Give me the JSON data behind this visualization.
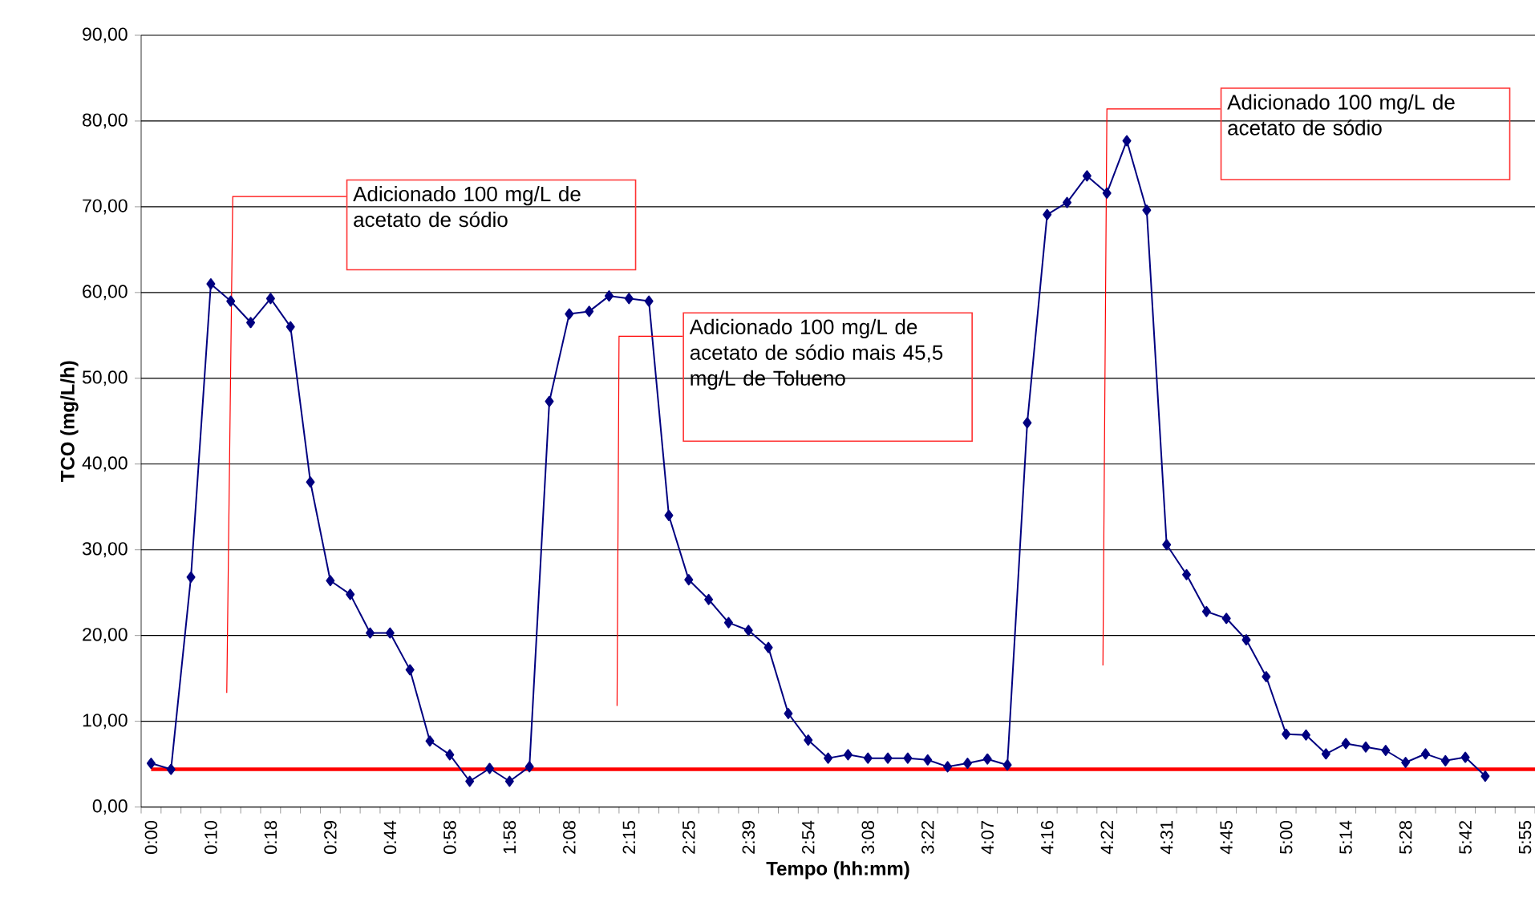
{
  "chart_data": {
    "type": "line",
    "xlabel": "Tempo (hh:mm)",
    "ylabel": "TCO (mg/L/h)",
    "categories": [
      "0:00",
      null,
      null,
      "0:10",
      null,
      null,
      "0:18",
      null,
      null,
      "0:29",
      null,
      null,
      "0:44",
      null,
      null,
      "0:58",
      null,
      null,
      "1:58",
      null,
      null,
      "2:08",
      null,
      null,
      "2:15",
      null,
      null,
      "2:25",
      null,
      null,
      "2:39",
      null,
      null,
      "2:54",
      null,
      null,
      "3:08",
      null,
      null,
      "3:22",
      null,
      null,
      "4:07",
      null,
      null,
      "4:16",
      null,
      null,
      "4:22",
      null,
      null,
      "4:31",
      null,
      null,
      "4:45",
      null,
      null,
      "5:00",
      null,
      null,
      "5:14",
      null,
      null,
      "5:28",
      null,
      null,
      "5:42",
      null,
      null,
      "5:55"
    ],
    "series": [
      {
        "color": "#000080",
        "values": [
          5.1,
          4.4,
          26.8,
          61.0,
          59.0,
          56.5,
          59.3,
          56.0,
          37.9,
          26.4,
          24.8,
          20.3,
          20.3,
          16.0,
          7.7,
          6.1,
          3.0,
          4.5,
          3.0,
          4.7,
          47.3,
          57.5,
          57.8,
          59.6,
          59.3,
          59.0,
          34.0,
          26.5,
          24.2,
          21.5,
          20.6,
          18.6,
          10.9,
          7.8,
          5.7,
          6.1,
          5.7,
          5.7,
          5.7,
          5.5,
          4.7,
          5.1,
          5.6,
          4.9,
          44.8,
          69.1,
          70.5,
          73.6,
          71.6,
          77.7,
          69.6,
          30.6,
          27.1,
          22.8,
          22.0,
          19.5,
          15.2,
          8.5,
          8.4,
          6.2,
          7.4,
          7.0,
          6.6,
          5.2,
          6.2,
          5.4,
          5.8,
          3.6,
          null,
          null
        ]
      }
    ],
    "ylim": [
      0,
      90
    ],
    "yticks": [
      {
        "value": 0,
        "label": "0,00"
      },
      {
        "value": 10,
        "label": "10,00"
      },
      {
        "value": 20,
        "label": "20,00"
      },
      {
        "value": 30,
        "label": "30,00"
      },
      {
        "value": 40,
        "label": "40,00"
      },
      {
        "value": 50,
        "label": "50,00"
      },
      {
        "value": 60,
        "label": "60,00"
      },
      {
        "value": 70,
        "label": "70,00"
      },
      {
        "value": 80,
        "label": "80,00"
      },
      {
        "value": 90,
        "label": "90,00"
      }
    ],
    "grid": "y",
    "marker": "diamond",
    "line_style": "solid",
    "ref_lines": [
      {
        "axis": "y",
        "value": 4.4,
        "color": "#ff0000"
      }
    ],
    "annotations": [
      "Adicionado 100 mg/L de acetato de sódio",
      "Adicionado 100 mg/L de acetato de sódio mais 45,5 mg/L de Tolueno",
      "Adicionado 100 mg/L de acetato de sódio"
    ]
  }
}
